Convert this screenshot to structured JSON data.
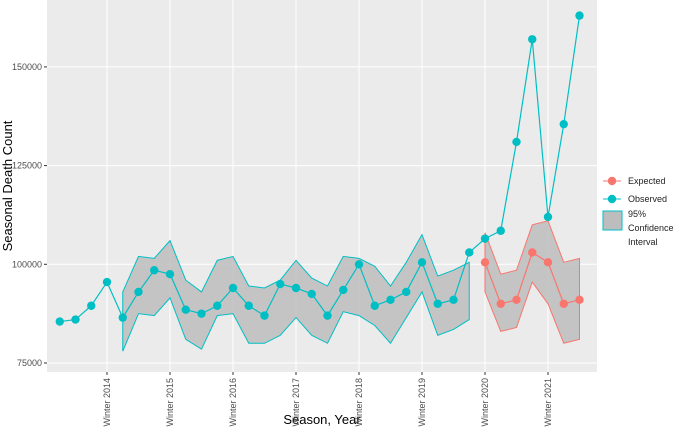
{
  "chart_data": {
    "type": "line",
    "x_label": "Season, Year",
    "y_label": "Seasonal Death Count",
    "categories": [
      null,
      null,
      null,
      "Winter 2014",
      null,
      null,
      null,
      "Winter 2015",
      null,
      null,
      null,
      "Winter 2016",
      null,
      null,
      null,
      "Winter 2017",
      null,
      null,
      null,
      "Winter 2018",
      null,
      null,
      null,
      "Winter 2019",
      null,
      null,
      null,
      "Winter 2020",
      null,
      null,
      null,
      "Winter 2021",
      null,
      null
    ],
    "series": [
      {
        "name": "Expected",
        "color": "#F8766D",
        "values": [
          null,
          null,
          null,
          null,
          null,
          null,
          null,
          null,
          null,
          null,
          null,
          null,
          null,
          null,
          null,
          null,
          null,
          null,
          null,
          null,
          null,
          null,
          null,
          null,
          null,
          null,
          null,
          100500,
          90000,
          91000,
          103000,
          100500,
          90000,
          91000
        ]
      },
      {
        "name": "Observed",
        "color": "#00BFC4",
        "values": [
          85500,
          86000,
          89500,
          95500,
          86500,
          93000,
          98500,
          97500,
          88500,
          87500,
          89500,
          94000,
          89500,
          87000,
          95000,
          94000,
          92500,
          87000,
          93500,
          100000,
          89500,
          91000,
          93000,
          100500,
          90000,
          91000,
          103000,
          106500,
          108500,
          131000,
          157000,
          112000,
          135500,
          163000
        ]
      }
    ],
    "confidence_interval": {
      "name": "95% Confidence Interval",
      "fill": "#bdbdbd",
      "bands": [
        {
          "color": "#00BFC4",
          "lower": [
            null,
            null,
            null,
            null,
            78000,
            87500,
            87000,
            91500,
            81000,
            78500,
            87000,
            87500,
            80000,
            80000,
            82000,
            86500,
            82000,
            80000,
            88000,
            87000,
            84500,
            80000,
            86500,
            93000,
            82000,
            83500,
            86000,
            null,
            null,
            null,
            null,
            null,
            null,
            null
          ],
          "upper": [
            null,
            null,
            null,
            null,
            93000,
            102000,
            101500,
            106000,
            96000,
            93000,
            101000,
            102000,
            94500,
            94000,
            96000,
            101000,
            96500,
            94500,
            102000,
            101500,
            99500,
            94500,
            100500,
            107500,
            97000,
            98500,
            100500,
            null,
            null,
            null,
            null,
            null,
            null,
            null
          ]
        },
        {
          "color": "#F8766D",
          "lower": [
            null,
            null,
            null,
            null,
            null,
            null,
            null,
            null,
            null,
            null,
            null,
            null,
            null,
            null,
            null,
            null,
            null,
            null,
            null,
            null,
            null,
            null,
            null,
            null,
            null,
            null,
            null,
            93000,
            83000,
            84000,
            95500,
            90000,
            80000,
            81000
          ],
          "upper": [
            null,
            null,
            null,
            null,
            null,
            null,
            null,
            null,
            null,
            null,
            null,
            null,
            null,
            null,
            null,
            null,
            null,
            null,
            null,
            null,
            null,
            null,
            null,
            null,
            null,
            null,
            null,
            108000,
            97500,
            98500,
            110000,
            111000,
            100500,
            101500
          ]
        }
      ]
    },
    "ylim": [
      72720,
      166950
    ],
    "yticks": [
      75000,
      100000,
      125000,
      150000
    ],
    "grid": true
  }
}
